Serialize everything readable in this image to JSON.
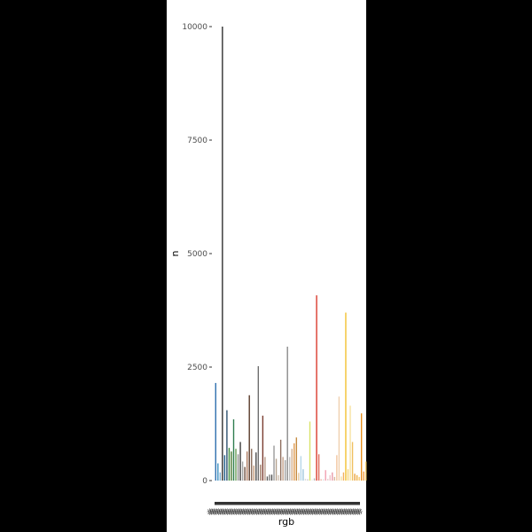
{
  "chart_data": {
    "type": "bar",
    "title": "",
    "xlabel": "rgb",
    "ylabel": "n",
    "ylim": [
      0,
      10000
    ],
    "yticks": [
      0,
      2500,
      5000,
      7500,
      10000
    ],
    "ytick_labels": [
      "0",
      "2500",
      "5000",
      "7500",
      "10000"
    ],
    "grid": false,
    "legend": "none",
    "x_tick_text": "#",
    "bars": [
      {
        "value": 2150,
        "color": "#2c6fae"
      },
      {
        "value": 380,
        "color": "#3a8fc2"
      },
      {
        "value": 180,
        "color": "#7fb3d5"
      },
      {
        "value": 10000,
        "color": "#2e2e2e"
      },
      {
        "value": 560,
        "color": "#1f5f8b"
      },
      {
        "value": 1550,
        "color": "#2c4f6e"
      },
      {
        "value": 720,
        "color": "#3f8f3f"
      },
      {
        "value": 640,
        "color": "#4c7a34"
      },
      {
        "value": 1350,
        "color": "#2f7d4f"
      },
      {
        "value": 700,
        "color": "#6a9f58"
      },
      {
        "value": 580,
        "color": "#8c8c8c"
      },
      {
        "value": 850,
        "color": "#3d3d3d"
      },
      {
        "value": 420,
        "color": "#a5a5a5"
      },
      {
        "value": 300,
        "color": "#6b4c3b"
      },
      {
        "value": 640,
        "color": "#b07d62"
      },
      {
        "value": 1880,
        "color": "#5a3a2a"
      },
      {
        "value": 700,
        "color": "#8a6d5a"
      },
      {
        "value": 330,
        "color": "#c49a7a"
      },
      {
        "value": 620,
        "color": "#4a4a4a"
      },
      {
        "value": 2520,
        "color": "#6e6e6e"
      },
      {
        "value": 350,
        "color": "#9e7b66"
      },
      {
        "value": 1430,
        "color": "#7a3b2e"
      },
      {
        "value": 520,
        "color": "#b89a88"
      },
      {
        "value": 90,
        "color": "#5b5b5b"
      },
      {
        "value": 130,
        "color": "#7c7c7c"
      },
      {
        "value": 130,
        "color": "#4e4e4e"
      },
      {
        "value": 770,
        "color": "#9a9a9a"
      },
      {
        "value": 480,
        "color": "#b5a28f"
      },
      {
        "value": 120,
        "color": "#d0c0b0"
      },
      {
        "value": 900,
        "color": "#8f6f5f"
      },
      {
        "value": 520,
        "color": "#c2a08a"
      },
      {
        "value": 450,
        "color": "#a0a0a0"
      },
      {
        "value": 2950,
        "color": "#8a8a8a"
      },
      {
        "value": 520,
        "color": "#c0c0c0"
      },
      {
        "value": 700,
        "color": "#d4b08c"
      },
      {
        "value": 820,
        "color": "#e09a4e"
      },
      {
        "value": 950,
        "color": "#c58a3e"
      },
      {
        "value": 170,
        "color": "#e8c9a0"
      },
      {
        "value": 540,
        "color": "#b7d7e8"
      },
      {
        "value": 250,
        "color": "#9fc7dd"
      },
      {
        "value": 40,
        "color": "#dddddd"
      },
      {
        "value": 30,
        "color": "#cccccc"
      },
      {
        "value": 1300,
        "color": "#d9e36a"
      },
      {
        "value": 25,
        "color": "#eeeeee"
      },
      {
        "value": 50,
        "color": "#bbbbbb"
      },
      {
        "value": 4080,
        "color": "#d93a2b"
      },
      {
        "value": 580,
        "color": "#e06a5a"
      },
      {
        "value": 30,
        "color": "#f0b0a0"
      },
      {
        "value": 30,
        "color": "#e0e0e0"
      },
      {
        "value": 230,
        "color": "#f2a0b0"
      },
      {
        "value": 40,
        "color": "#e8d0d0"
      },
      {
        "value": 120,
        "color": "#f0c0c8"
      },
      {
        "value": 180,
        "color": "#e89aa8"
      },
      {
        "value": 80,
        "color": "#d7b8a0"
      },
      {
        "value": 560,
        "color": "#f2c6a0"
      },
      {
        "value": 1850,
        "color": "#f0d0b0"
      },
      {
        "value": 90,
        "color": "#f5e0a0"
      },
      {
        "value": 180,
        "color": "#f2b060"
      },
      {
        "value": 3700,
        "color": "#f2c230"
      },
      {
        "value": 250,
        "color": "#f5d57a"
      },
      {
        "value": 1650,
        "color": "#f7e2a0"
      },
      {
        "value": 850,
        "color": "#f0c060"
      },
      {
        "value": 150,
        "color": "#e8a040"
      },
      {
        "value": 120,
        "color": "#f0b040"
      },
      {
        "value": 80,
        "color": "#f5c870"
      },
      {
        "value": 1480,
        "color": "#e8901e"
      },
      {
        "value": 200,
        "color": "#f0a040"
      },
      {
        "value": 420,
        "color": "#f7d070"
      }
    ]
  }
}
